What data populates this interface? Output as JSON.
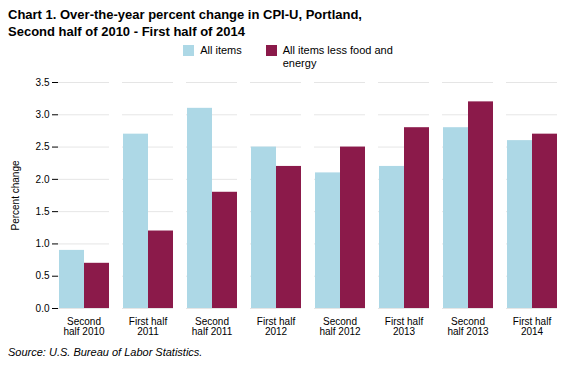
{
  "chart_data": {
    "type": "bar",
    "title": "Chart 1.  Over-the-year percent change in CPI-U, Portland,",
    "subtitle": "Second half of 2010 - First half of 2014",
    "caption": "Source: U.S. Bureau of Labor Statistics.",
    "categories": [
      "Second\nhalf 2010",
      "First half\n2011",
      "Second\nhalf 2011",
      "First half\n2012",
      "Second\nhalf 2012",
      "First half\n2013",
      "Second\nhalf 2013",
      "First half\n2014"
    ],
    "series": [
      {
        "name": "All items",
        "color": "#add8e6",
        "values": [
          0.9,
          2.7,
          3.1,
          2.5,
          2.1,
          2.2,
          2.8,
          2.6
        ]
      },
      {
        "name": "All items less food and\nenergy",
        "color": "#8b1a4a",
        "values": [
          0.7,
          1.2,
          1.8,
          2.2,
          2.5,
          2.8,
          3.2,
          2.7
        ]
      }
    ],
    "ylabel": "Percent change",
    "ylim": [
      0,
      3.5
    ],
    "yticks": [
      {
        "value": 0,
        "label": "0.0"
      },
      0.5,
      {
        "value": 1,
        "label": "1.0"
      },
      1.5,
      {
        "value": 2,
        "label": "2.0"
      },
      2.5,
      {
        "value": 3,
        "label": "3.0"
      },
      3.5
    ],
    "grid": true,
    "legend": "top"
  }
}
